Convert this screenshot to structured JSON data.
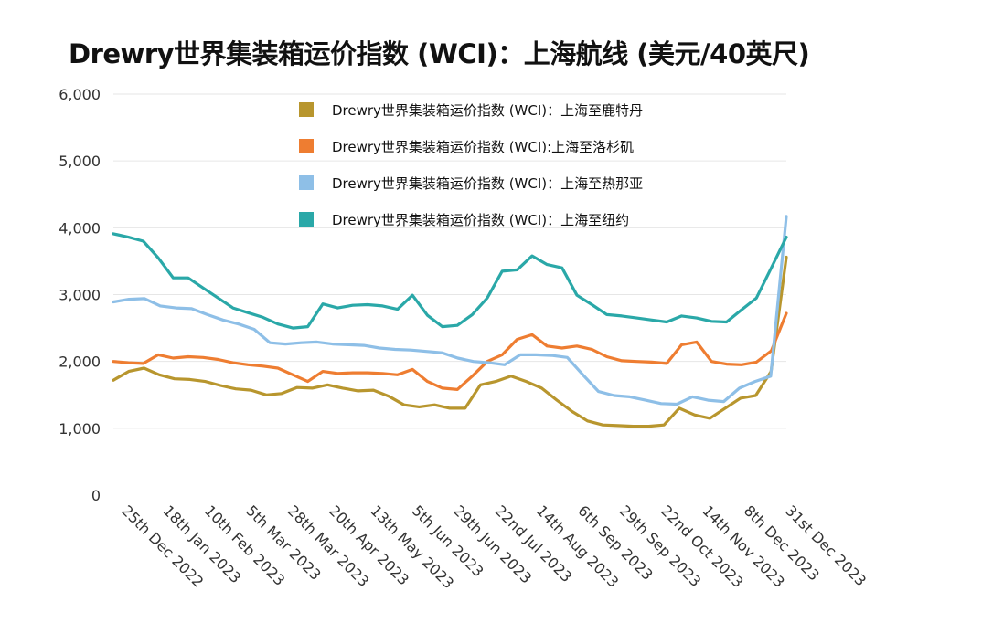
{
  "chart_data": {
    "type": "line",
    "title": "Drewry世界集装箱运价指数 (WCI)：上海航线 (美元/40英尺)",
    "ylim": [
      0,
      6000
    ],
    "yticks": [
      "0",
      "1,000",
      "2,000",
      "3,000",
      "4,000",
      "5,000",
      "6,000"
    ],
    "ytick_values": [
      0,
      1000,
      2000,
      3000,
      4000,
      5000,
      6000
    ],
    "grid": true,
    "legend_position": "top-right",
    "x_tick_labels": [
      "25th Dec 2022",
      "18th Jan 2023",
      "10th Feb 2023",
      "5th Mar 2023",
      "28th Mar 2023",
      "20th Apr 2023",
      "13th May 2023",
      "5th Jun 2023",
      "29th Jun 2023",
      "22nd Jul 2023",
      "14th Aug 2023",
      "6th Sep 2023",
      "29th Sep 2023",
      "22nd Oct 2023",
      "14th Nov 2023",
      "8th Dec 2023",
      "31st Dec 2023"
    ],
    "series": [
      {
        "name": "Drewry世界集装箱运价指数 (WCI)：上海至鹿特丹",
        "color": "#b8962e",
        "values": [
          1720,
          1850,
          1900,
          1800,
          1740,
          1730,
          1700,
          1640,
          1590,
          1570,
          1500,
          1520,
          1610,
          1600,
          1650,
          1600,
          1560,
          1570,
          1480,
          1350,
          1320,
          1350,
          1300,
          1300,
          1650,
          1700,
          1780,
          1700,
          1600,
          1420,
          1250,
          1110,
          1050,
          1040,
          1030,
          1030,
          1050,
          1300,
          1200,
          1150,
          1300,
          1450,
          1490,
          1850,
          3560
        ]
      },
      {
        "name": "Drewry世界集装箱运价指数 (WCI):上海至洛杉矶",
        "color": "#ee7d31",
        "values": [
          2000,
          1980,
          1970,
          2100,
          2050,
          2070,
          2060,
          2030,
          1980,
          1950,
          1930,
          1900,
          1800,
          1700,
          1850,
          1820,
          1830,
          1830,
          1820,
          1800,
          1880,
          1700,
          1600,
          1580,
          1780,
          2000,
          2100,
          2330,
          2400,
          2230,
          2200,
          2230,
          2180,
          2070,
          2010,
          2000,
          1990,
          1970,
          2250,
          2290,
          2000,
          1960,
          1950,
          1990,
          2160,
          2720
        ]
      },
      {
        "name": "Drewry世界集装箱运价指数 (WCI)：上海至热那亚",
        "color": "#8ebfe7",
        "values": [
          2890,
          2930,
          2940,
          2830,
          2800,
          2790,
          2700,
          2620,
          2560,
          2480,
          2280,
          2260,
          2280,
          2290,
          2260,
          2250,
          2240,
          2200,
          2180,
          2170,
          2150,
          2130,
          2050,
          2000,
          1980,
          1950,
          2100,
          2100,
          2090,
          2060,
          1800,
          1550,
          1490,
          1470,
          1420,
          1370,
          1360,
          1470,
          1420,
          1400,
          1600,
          1700,
          1780,
          4170
        ]
      },
      {
        "name": "Drewry世界集装箱运价指数 (WCI)：上海至纽约",
        "color": "#2aa8a8",
        "values": [
          3910,
          3860,
          3800,
          3550,
          3250,
          3250,
          3100,
          2950,
          2800,
          2730,
          2660,
          2560,
          2500,
          2520,
          2860,
          2800,
          2840,
          2850,
          2830,
          2780,
          2990,
          2690,
          2520,
          2540,
          2700,
          2950,
          3350,
          3370,
          3580,
          3450,
          3400,
          2990,
          2850,
          2700,
          2680,
          2650,
          2620,
          2590,
          2680,
          2650,
          2600,
          2590,
          2770,
          2950,
          3400,
          3860
        ]
      }
    ]
  }
}
